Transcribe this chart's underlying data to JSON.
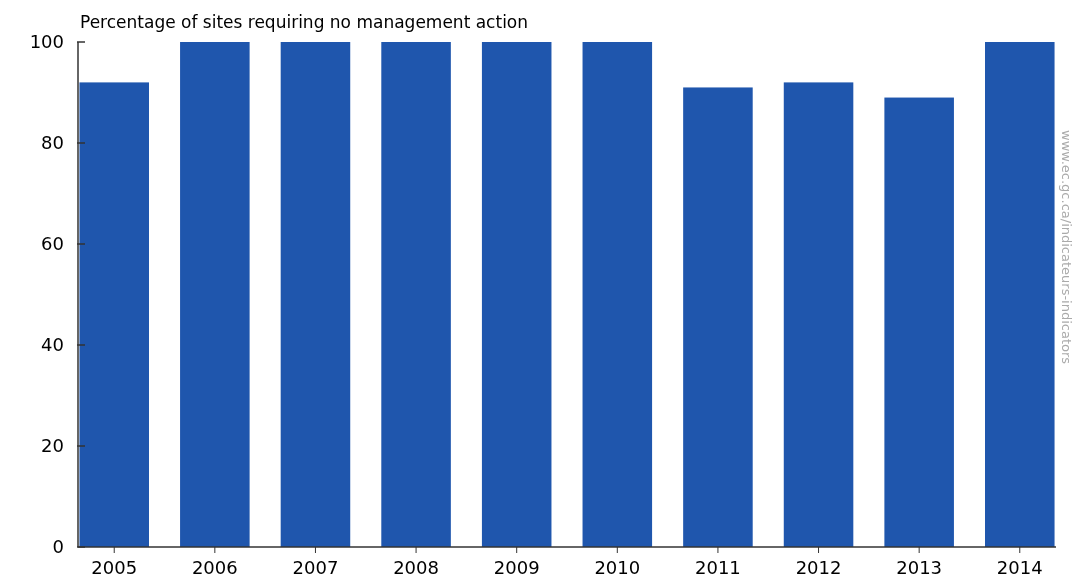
{
  "chart_data": {
    "type": "bar",
    "ylabel": "Percentage of sites requiring no management action",
    "categories": [
      "2005",
      "2006",
      "2007",
      "2008",
      "2009",
      "2010",
      "2011",
      "2012",
      "2013",
      "2014"
    ],
    "values": [
      92,
      100,
      100,
      100,
      100,
      100,
      91,
      92,
      89,
      100
    ],
    "color": "#1f56ad",
    "ylim": [
      0,
      100
    ],
    "yticks": [
      0,
      20,
      40,
      60,
      80,
      100
    ],
    "grid": false,
    "annotations": [
      "www.ec.gc.ca/indicateurs-indicators"
    ]
  }
}
